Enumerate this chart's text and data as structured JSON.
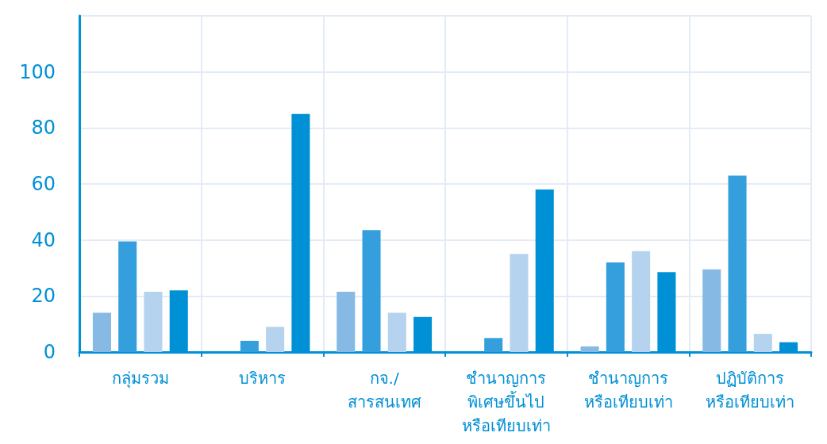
{
  "chart_data": {
    "type": "bar",
    "categories": [
      "กลุ่มรวม",
      "บริหาร",
      "กจ./\nสารสนเทศ",
      "ชำนาญการ\nพิเศษขึ้นไป\nหรือเทียบเท่า",
      "ชำนาญการ\nหรือเทียบเท่า",
      "ปฏิบัติการ\nหรือเทียบเท่า"
    ],
    "series": [
      {
        "color": "#86b9e4",
        "values": [
          14,
          0,
          21.5,
          0,
          2,
          29.5
        ]
      },
      {
        "color": "#349fdc",
        "values": [
          39.5,
          4,
          43.5,
          5,
          32,
          63
        ]
      },
      {
        "color": "#b5d3ee",
        "values": [
          21.5,
          9,
          14,
          35,
          36,
          6.5
        ]
      },
      {
        "color": "#0090d5",
        "values": [
          22,
          85,
          12.5,
          58,
          28.5,
          3.5
        ]
      }
    ],
    "ylim": [
      0,
      120
    ],
    "yticks": [
      0,
      20,
      40,
      60,
      80,
      100,
      {
        "value": 120,
        "label": null
      }
    ],
    "grid": true
  }
}
